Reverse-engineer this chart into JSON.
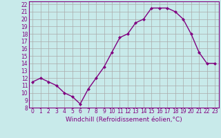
{
  "x": [
    0,
    1,
    2,
    3,
    4,
    5,
    6,
    7,
    8,
    9,
    10,
    11,
    12,
    13,
    14,
    15,
    16,
    17,
    18,
    19,
    20,
    21,
    22,
    23
  ],
  "y": [
    11.5,
    12.0,
    11.5,
    11.0,
    10.0,
    9.5,
    8.5,
    10.5,
    12.0,
    13.5,
    15.5,
    17.5,
    18.0,
    19.5,
    20.0,
    21.5,
    21.5,
    21.5,
    21.0,
    20.0,
    18.0,
    15.5,
    14.0,
    14.0
  ],
  "line_color": "#800080",
  "marker": "D",
  "marker_size": 2,
  "bg_color": "#c8eaea",
  "grid_color": "#aaaaaa",
  "xlabel": "Windchill (Refroidissement éolien,°C)",
  "xlim": [
    -0.5,
    23.5
  ],
  "ylim": [
    8,
    22.4
  ],
  "yticks": [
    8,
    9,
    10,
    11,
    12,
    13,
    14,
    15,
    16,
    17,
    18,
    19,
    20,
    21,
    22
  ],
  "xticks": [
    0,
    1,
    2,
    3,
    4,
    5,
    6,
    7,
    8,
    9,
    10,
    11,
    12,
    13,
    14,
    15,
    16,
    17,
    18,
    19,
    20,
    21,
    22,
    23
  ],
  "tick_label_size": 5.5,
  "xlabel_size": 6.5,
  "line_width": 1.0
}
